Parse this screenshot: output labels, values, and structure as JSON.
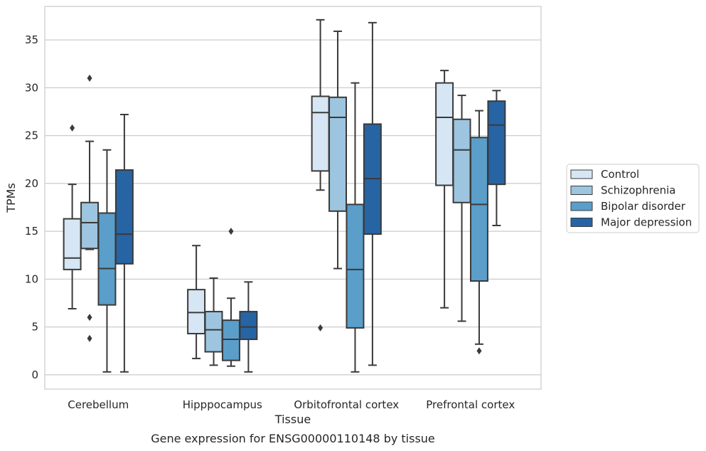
{
  "caption": "Gene expression for ENSG00000110148 by tissue",
  "chart_data": {
    "type": "box",
    "xlabel": "Tissue",
    "ylabel": "TPMs",
    "ylim": [
      -1.5,
      38.5
    ],
    "yticks": [
      0,
      5,
      10,
      15,
      20,
      25,
      30,
      35
    ],
    "grid": "horizontal",
    "legend_position": "right",
    "categories": [
      "Cerebellum",
      "Hipppocampus",
      "Orbitofrontal cortex",
      "Prefrontal cortex"
    ],
    "series": [
      {
        "name": "Control",
        "color": "#d6e6f4",
        "boxes": [
          {
            "whislo": 6.9,
            "q1": 11.0,
            "med": 12.2,
            "q3": 16.3,
            "whishi": 19.9,
            "fliers": [
              25.8
            ]
          },
          {
            "whislo": 1.7,
            "q1": 4.3,
            "med": 6.5,
            "q3": 8.9,
            "whishi": 13.5,
            "fliers": []
          },
          {
            "whislo": 19.3,
            "q1": 21.3,
            "med": 27.4,
            "q3": 29.1,
            "whishi": 37.1,
            "fliers": [
              4.9
            ]
          },
          {
            "whislo": 7.0,
            "q1": 19.8,
            "med": 26.9,
            "q3": 30.5,
            "whishi": 31.8,
            "fliers": []
          }
        ]
      },
      {
        "name": "Schizophrenia",
        "color": "#9dc5df",
        "boxes": [
          {
            "whislo": 13.1,
            "q1": 13.2,
            "med": 15.9,
            "q3": 18.0,
            "whishi": 24.4,
            "fliers": [
              31.0,
              6.0,
              3.8
            ]
          },
          {
            "whislo": 1.0,
            "q1": 2.4,
            "med": 4.7,
            "q3": 6.6,
            "whishi": 10.1,
            "fliers": []
          },
          {
            "whislo": 11.1,
            "q1": 17.1,
            "med": 26.9,
            "q3": 29.0,
            "whishi": 35.9,
            "fliers": []
          },
          {
            "whislo": 5.6,
            "q1": 18.0,
            "med": 23.5,
            "q3": 26.7,
            "whishi": 29.2,
            "fliers": []
          }
        ]
      },
      {
        "name": "Bipolar disorder",
        "color": "#5a9ec9",
        "boxes": [
          {
            "whislo": 0.3,
            "q1": 7.3,
            "med": 11.1,
            "q3": 16.9,
            "whishi": 23.5,
            "fliers": []
          },
          {
            "whislo": 0.9,
            "q1": 1.5,
            "med": 3.7,
            "q3": 5.7,
            "whishi": 8.0,
            "fliers": [
              15.0
            ]
          },
          {
            "whislo": 0.3,
            "q1": 4.9,
            "med": 11.0,
            "q3": 17.8,
            "whishi": 30.5,
            "fliers": []
          },
          {
            "whislo": 3.2,
            "q1": 9.8,
            "med": 17.8,
            "q3": 24.8,
            "whishi": 27.6,
            "fliers": [
              2.5
            ]
          }
        ]
      },
      {
        "name": "Major depression",
        "color": "#2764a4",
        "boxes": [
          {
            "whislo": 0.3,
            "q1": 11.6,
            "med": 14.7,
            "q3": 21.4,
            "whishi": 27.2,
            "fliers": []
          },
          {
            "whislo": 0.3,
            "q1": 3.7,
            "med": 5.0,
            "q3": 6.6,
            "whishi": 9.7,
            "fliers": []
          },
          {
            "whislo": 1.0,
            "q1": 14.7,
            "med": 20.5,
            "q3": 26.2,
            "whishi": 36.8,
            "fliers": []
          },
          {
            "whislo": 15.6,
            "q1": 19.9,
            "med": 26.1,
            "q3": 28.6,
            "whishi": 29.7,
            "fliers": []
          }
        ]
      }
    ]
  }
}
